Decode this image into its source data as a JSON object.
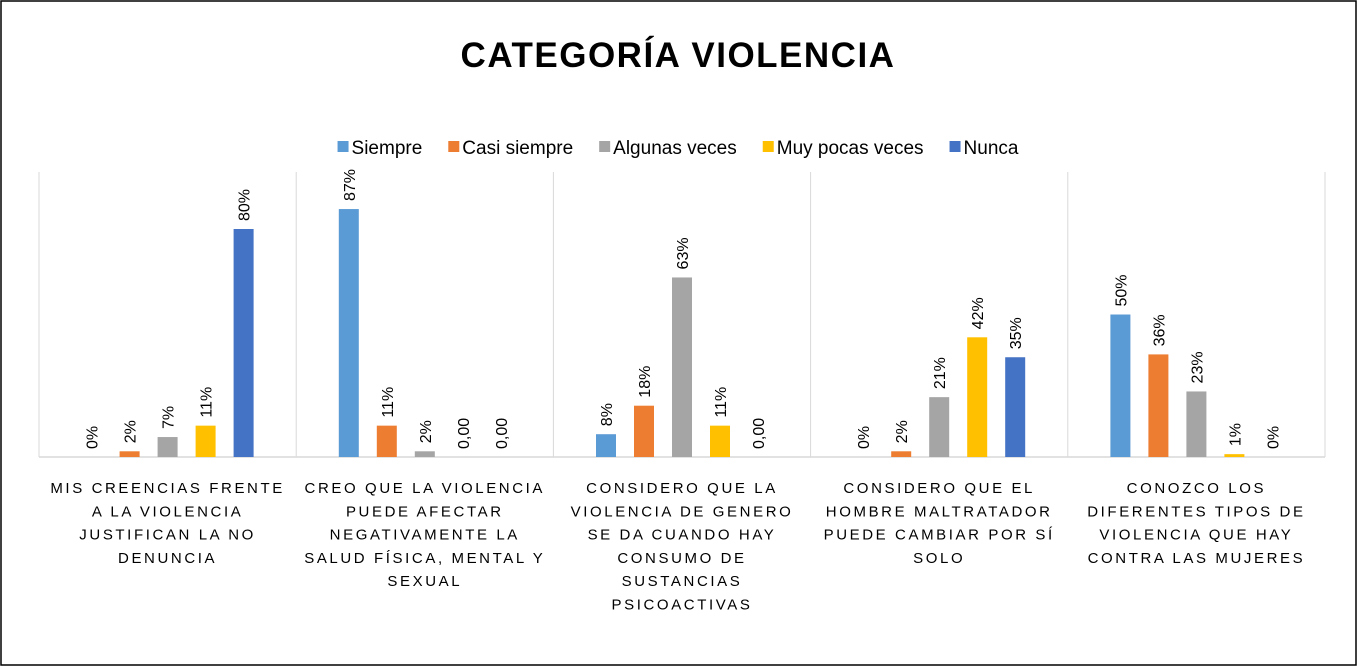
{
  "chart_data": {
    "type": "bar",
    "title": "CATEGORÍA VIOLENCIA",
    "categories": [
      "MIS CREENCIAS FRENTE A LA VIOLENCIA JUSTIFICAN LA NO DENUNCIA",
      "CREO QUE LA VIOLENCIA PUEDE AFECTAR NEGATIVAMENTE LA SALUD FÍSICA, MENTAL Y SEXUAL",
      "CONSIDERO QUE LA VIOLENCIA DE GENERO SE DA CUANDO HAY CONSUMO DE SUSTANCIAS PSICOACTIVAS",
      "CONSIDERO QUE EL HOMBRE MALTRATADOR PUEDE CAMBIAR POR SÍ SOLO",
      "CONOZCO LOS DIFERENTES TIPOS DE VIOLENCIA QUE HAY CONTRA LAS MUJERES"
    ],
    "series": [
      {
        "name": "Siempre",
        "color": "#5b9bd5",
        "values": [
          0,
          87,
          8,
          0,
          50
        ],
        "value_labels": [
          "0%",
          "87%",
          "8%",
          "0%",
          "50%"
        ]
      },
      {
        "name": "Casi siempre",
        "color": "#ed7d31",
        "values": [
          2,
          11,
          18,
          2,
          36
        ],
        "value_labels": [
          "2%",
          "11%",
          "18%",
          "2%",
          "36%"
        ]
      },
      {
        "name": "Algunas veces",
        "color": "#a5a5a5",
        "values": [
          7,
          2,
          63,
          21,
          23
        ],
        "value_labels": [
          "7%",
          "2%",
          "63%",
          "21%",
          "23%"
        ]
      },
      {
        "name": "Muy pocas veces",
        "color": "#ffc000",
        "values": [
          11,
          0,
          11,
          42,
          1
        ],
        "value_labels": [
          "11%",
          "0,00",
          "11%",
          "42%",
          "1%"
        ]
      },
      {
        "name": "Nunca",
        "color": "#4472c4",
        "values": [
          80,
          0,
          0,
          35,
          0
        ],
        "value_labels": [
          "80%",
          "0,00",
          "0,00",
          "35%",
          "0%"
        ]
      }
    ],
    "ylim": [
      0,
      100
    ],
    "legend": "top"
  }
}
